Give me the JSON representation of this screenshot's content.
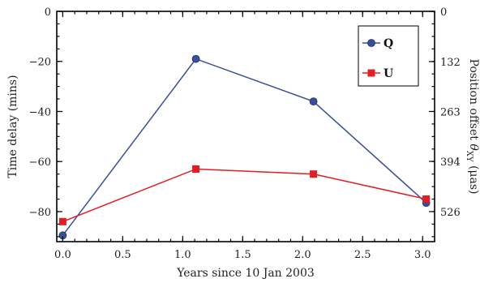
{
  "chart_data": {
    "type": "line",
    "title": "",
    "xlabel": "Years since 10 Jan 2003",
    "ylabel": "Time delay (mins)",
    "y2label_main": "Position offset ",
    "y2label_symbol": "θ",
    "y2label_sub": "XY",
    "y2label_units": " (μas)",
    "xlim": [
      -0.05,
      3.1
    ],
    "ylim": [
      -92,
      0
    ],
    "x_ticks": [
      0.0,
      0.5,
      1.0,
      1.5,
      2.0,
      2.5,
      3.0
    ],
    "x_tick_labels": [
      "0.0",
      "0.5",
      "1.0",
      "1.5",
      "2.0",
      "2.5",
      "3.0"
    ],
    "y_ticks": [
      0,
      -20,
      -40,
      -60,
      -80
    ],
    "y_tick_labels": [
      "0",
      "−20",
      "−40",
      "−60",
      "−80"
    ],
    "y2_ticks": [
      0,
      132,
      263,
      394,
      526
    ],
    "y2_tick_labels": [
      "0",
      "132",
      "263",
      "394",
      "526"
    ],
    "y2_per_y": -6.575,
    "grid": false,
    "legend_position": "top-right",
    "series": [
      {
        "name": "Q",
        "color": "#3a4f9a",
        "marker": "circle",
        "x": [
          0.0,
          1.11,
          2.09,
          3.03
        ],
        "y": [
          -89.5,
          -19,
          -36,
          -76.5
        ]
      },
      {
        "name": "U",
        "color": "#e31d24",
        "marker": "square",
        "x": [
          0.0,
          1.11,
          2.09,
          3.03
        ],
        "y": [
          -84,
          -63,
          -65,
          -75
        ]
      }
    ]
  }
}
